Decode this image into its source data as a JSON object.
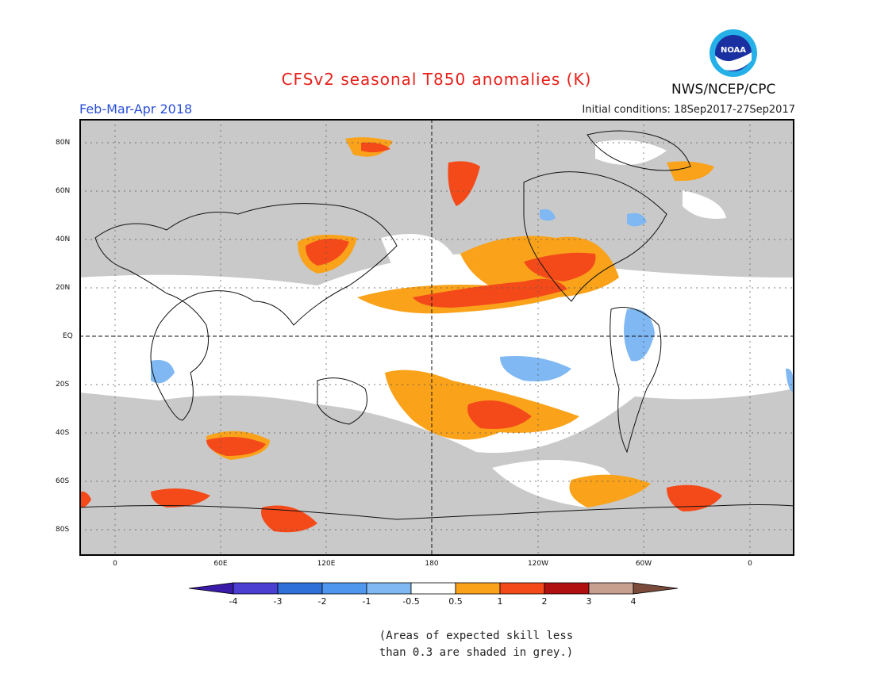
{
  "title": "CFSv2 seasonal T850 anomalies (K)",
  "season": "Feb-Mar-Apr 2018",
  "initial_conditions": "Initial conditions: 18Sep2017-27Sep2017",
  "agency": "NWS/NCEP/CPC",
  "logo_text": "NOAA",
  "lat_labels": [
    "80N",
    "60N",
    "40N",
    "20N",
    "EQ",
    "20S",
    "40S",
    "60S",
    "80S"
  ],
  "lon_labels": [
    "0",
    "60E",
    "120E",
    "180",
    "120W",
    "60W",
    "0"
  ],
  "colorbar": {
    "labels": [
      "-4",
      "-3",
      "-2",
      "-1",
      "-0.5",
      "0.5",
      "1",
      "2",
      "3",
      "4"
    ],
    "colors": [
      "#3a1aa8",
      "#4a3fd0",
      "#2f6fd8",
      "#4f97ee",
      "#7fb8f2",
      "#ffffff",
      "#f9a21a",
      "#f44a1a",
      "#b01010",
      "#c8a090",
      "#7a4a3a"
    ]
  },
  "note_lines": [
    "(Areas of expected skill less",
    "than 0.3 are shaded in grey.)"
  ],
  "colors": {
    "grey": "#c9c9c9",
    "orange": "#f9a21a",
    "red": "#f44a1a",
    "blue": "#7fb8f2",
    "title": "#e8201a",
    "season": "#2a4fd8"
  }
}
